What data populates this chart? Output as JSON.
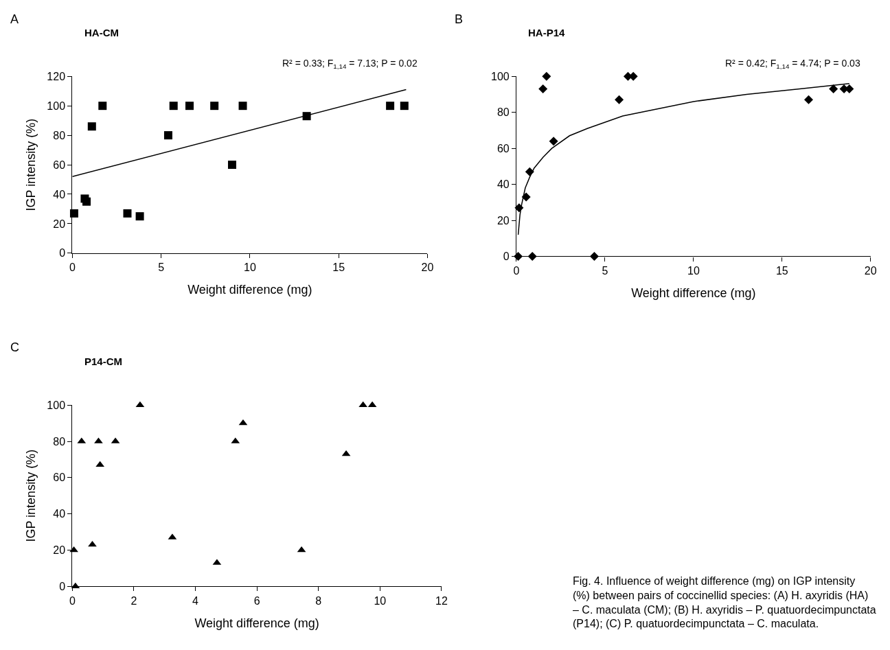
{
  "chart_data": [
    {
      "type": "scatter",
      "title": "HA-CM",
      "xlabel": "Weight difference (mg)",
      "ylabel": "IGP intensity (%)",
      "xlim": [
        0,
        20
      ],
      "xticks": [
        0,
        5,
        10,
        15,
        20
      ],
      "ylim": [
        0,
        120
      ],
      "yticks": [
        0,
        20,
        40,
        60,
        80,
        100,
        120
      ],
      "annotations": [
        "A",
        "R² = 0.33; F$_{1,14}$ = 7.13; P = 0.02"
      ],
      "series": [
        {
          "marker": "square",
          "color": "#000000",
          "x": [
            0.1,
            0.7,
            0.8,
            1.1,
            1.7,
            3.1,
            3.8,
            5.4,
            5.7,
            6.6,
            8.0,
            9.0,
            9.6,
            13.2,
            17.9,
            18.7
          ],
          "values": [
            27,
            37,
            35,
            86,
            100,
            27,
            25,
            80,
            100,
            100,
            100,
            60,
            100,
            93,
            100,
            100
          ]
        },
        {
          "type": "line",
          "color": "#000000",
          "x": [
            0,
            18.8
          ],
          "values": [
            52,
            111
          ]
        }
      ]
    },
    {
      "type": "scatter",
      "title": "HA-P14",
      "xlabel": "Weight difference (mg)",
      "xlim": [
        0,
        20
      ],
      "xticks": [
        0,
        5,
        10,
        15,
        20
      ],
      "ylim": [
        0,
        100
      ],
      "yticks": [
        0,
        20,
        40,
        60,
        80,
        100
      ],
      "annotations": [
        "B",
        "R² = 0.42; F$_{1,14}$ = 4.74; P = 0.03"
      ],
      "series": [
        {
          "marker": "diamond",
          "color": "#000000",
          "x": [
            0.1,
            0.15,
            0.55,
            0.75,
            0.9,
            1.5,
            1.7,
            2.1,
            4.4,
            5.8,
            6.3,
            6.6,
            16.5,
            17.9,
            18.5,
            18.8
          ],
          "values": [
            0,
            27,
            33,
            47,
            0,
            93,
            100,
            64,
            0,
            87,
            100,
            100,
            87,
            93,
            93,
            93
          ]
        },
        {
          "type": "line",
          "color": "#000000",
          "x": [
            0.1,
            0.2,
            0.3,
            0.5,
            0.75,
            1,
            1.5,
            2,
            3,
            4,
            6,
            8,
            10,
            13,
            16,
            18.8
          ],
          "values": [
            12,
            23,
            29,
            38,
            44,
            49,
            55,
            60,
            67,
            71,
            78,
            82,
            86,
            90,
            93,
            96
          ]
        }
      ]
    },
    {
      "type": "scatter",
      "title": "P14-CM",
      "xlabel": "Weight difference (mg)",
      "ylabel": "IGP intensity (%)",
      "xlim": [
        0,
        12
      ],
      "xticks": [
        0,
        2,
        4,
        6,
        8,
        10,
        12
      ],
      "ylim": [
        0,
        100
      ],
      "yticks": [
        0,
        20,
        40,
        60,
        80,
        100
      ],
      "annotations": [
        "C",
        "Fig. 4. Influence of weight difference (mg) on IGP intensity (%) between pairs of coccinellid species: (A) H. axyridis (HA) – C. maculata (CM); (B) H. axyridis – P. quatuordecimpunctata (P14); (C) P. quatuordecimpunctata – C. maculata."
      ],
      "series": [
        {
          "marker": "triangle",
          "color": "#000000",
          "x": [
            0.05,
            0.1,
            0.3,
            0.65,
            0.85,
            0.9,
            1.4,
            2.2,
            3.25,
            4.7,
            5.3,
            5.55,
            7.45,
            8.9,
            9.45,
            9.75
          ],
          "values": [
            20,
            0,
            80,
            23,
            80,
            67,
            80,
            100,
            27,
            13,
            80,
            90,
            20,
            73,
            100,
            100
          ]
        }
      ]
    }
  ]
}
